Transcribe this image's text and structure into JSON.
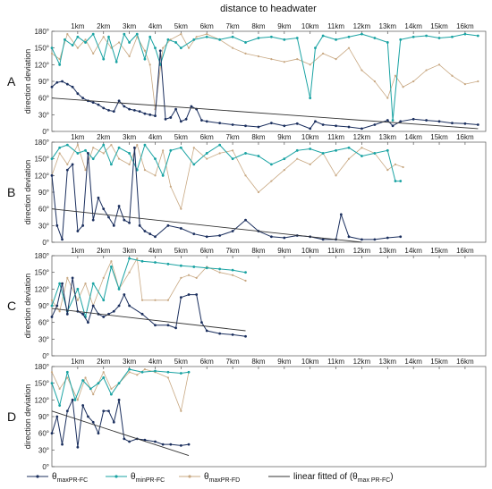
{
  "chart_data": {
    "type": "line",
    "title": "distance to headwater",
    "ylabel": "direction deviation",
    "x_ticks": [
      "1km",
      "2km",
      "3km",
      "4km",
      "5km",
      "6km",
      "7km",
      "8km",
      "9km",
      "10km",
      "11km",
      "12km",
      "13km",
      "14km",
      "15km",
      "16km"
    ],
    "y_ticks": [
      "0°",
      "30°",
      "60°",
      "90°",
      "120°",
      "150°",
      "180°"
    ],
    "xlim": [
      0,
      16.8
    ],
    "ylim": [
      0,
      180
    ],
    "colors": {
      "maxFC": "#1b2f5e",
      "minFC": "#1aa3a3",
      "maxFD": "#c8a882",
      "fit": "#333333"
    },
    "legend": [
      {
        "key": "maxFC",
        "sym": "θ",
        "sub": "maxPR-FC"
      },
      {
        "key": "minFC",
        "sym": "θ",
        "sub": "minPR-FC"
      },
      {
        "key": "maxFD",
        "sym": "θ",
        "sub": "maxPR-FD"
      },
      {
        "key": "fit",
        "sym": "linear fitted of (θ",
        "sub": "max PR-FC",
        "tail": ")"
      }
    ],
    "panels": [
      {
        "label": "A",
        "series": [
          {
            "key": "maxFC",
            "x": [
              0,
              0.2,
              0.4,
              0.6,
              0.8,
              1.0,
              1.2,
              1.4,
              1.6,
              1.8,
              2.0,
              2.2,
              2.4,
              2.6,
              2.8,
              3.0,
              3.2,
              3.4,
              3.6,
              3.8,
              4.0,
              4.2,
              4.4,
              4.6,
              4.8,
              5.0,
              5.2,
              5.4,
              5.6,
              5.8,
              6.0,
              6.5,
              7.0,
              7.5,
              8.0,
              8.5,
              9.0,
              9.5,
              10.0,
              10.2,
              10.5,
              11.0,
              11.5,
              12.0,
              12.5,
              13.0,
              13.2,
              13.5,
              14.0,
              14.5,
              15.0,
              15.5,
              16.0,
              16.5
            ],
            "y": [
              80,
              88,
              90,
              85,
              80,
              68,
              60,
              55,
              52,
              48,
              42,
              38,
              36,
              55,
              45,
              40,
              38,
              36,
              32,
              30,
              28,
              145,
              22,
              25,
              40,
              18,
              22,
              45,
              40,
              20,
              18,
              15,
              12,
              10,
              8,
              15,
              10,
              14,
              5,
              18,
              12,
              10,
              8,
              5,
              12,
              20,
              10,
              18,
              22,
              20,
              18,
              15,
              14,
              12
            ]
          },
          {
            "key": "minFC",
            "x": [
              0,
              0.3,
              0.5,
              0.8,
              1.0,
              1.3,
              1.6,
              2.0,
              2.2,
              2.5,
              2.8,
              3.0,
              3.3,
              3.6,
              3.8,
              4.0,
              4.2,
              4.5,
              4.8,
              5.0,
              5.5,
              6.0,
              6.5,
              7.0,
              7.5,
              8.0,
              8.5,
              9.0,
              9.5,
              10.0,
              10.2,
              10.5,
              11.0,
              11.5,
              12.0,
              12.5,
              13.0,
              13.2,
              13.5,
              14.0,
              14.5,
              15.0,
              15.5,
              16.0,
              16.5
            ],
            "y": [
              150,
              120,
              165,
              155,
              170,
              160,
              175,
              130,
              170,
              125,
              175,
              160,
              175,
              130,
              170,
              150,
              120,
              165,
              160,
              150,
              165,
              170,
              165,
              170,
              160,
              168,
              170,
              165,
              168,
              60,
              150,
              172,
              165,
              170,
              175,
              168,
              160,
              20,
              165,
              170,
              172,
              168,
              170,
              175,
              172
            ]
          },
          {
            "key": "maxFD",
            "x": [
              0,
              0.3,
              0.6,
              1.0,
              1.3,
              1.6,
              2.0,
              2.3,
              2.6,
              3.0,
              3.3,
              3.6,
              3.8,
              4.0,
              4.3,
              4.6,
              5.0,
              5.3,
              5.6,
              6.0,
              6.5,
              7.0,
              7.5,
              8.0,
              8.5,
              9.0,
              9.5,
              10.0,
              10.5,
              11.0,
              11.5,
              12.0,
              12.5,
              13.0,
              13.3,
              13.6,
              14.0,
              14.5,
              15.0,
              15.5,
              16.0,
              16.5
            ],
            "y": [
              140,
              130,
              175,
              150,
              165,
              140,
              170,
              150,
              160,
              135,
              170,
              145,
              120,
              40,
              150,
              165,
              175,
              150,
              170,
              175,
              165,
              150,
              140,
              135,
              130,
              125,
              130,
              120,
              140,
              130,
              150,
              110,
              90,
              60,
              100,
              80,
              90,
              110,
              120,
              100,
              85,
              90
            ]
          }
        ],
        "fit": {
          "x0": 0,
          "y0": 60,
          "x1": 16.5,
          "y1": 5
        }
      },
      {
        "label": "B",
        "series": [
          {
            "key": "maxFC",
            "x": [
              0,
              0.2,
              0.4,
              0.6,
              0.8,
              1.0,
              1.2,
              1.4,
              1.6,
              1.8,
              2.0,
              2.2,
              2.4,
              2.6,
              2.8,
              3.0,
              3.2,
              3.4,
              3.6,
              3.8,
              4.0,
              4.5,
              5.0,
              5.5,
              6.0,
              6.5,
              7.0,
              7.5,
              8.0,
              8.5,
              9.0,
              9.5,
              10.0,
              10.5,
              11.0,
              11.2,
              11.5,
              12.0,
              12.5,
              13.0,
              13.5
            ],
            "y": [
              120,
              30,
              5,
              130,
              140,
              20,
              30,
              160,
              40,
              80,
              60,
              45,
              30,
              65,
              40,
              35,
              170,
              30,
              20,
              15,
              10,
              30,
              25,
              15,
              10,
              12,
              20,
              40,
              20,
              10,
              8,
              12,
              10,
              5,
              5,
              50,
              10,
              5,
              5,
              8,
              10
            ]
          },
          {
            "key": "minFC",
            "x": [
              0,
              0.3,
              0.6,
              1.0,
              1.3,
              1.6,
              2.0,
              2.3,
              2.6,
              3.0,
              3.3,
              3.6,
              4.0,
              4.3,
              4.6,
              5.0,
              5.5,
              6.0,
              6.5,
              7.0,
              7.5,
              8.0,
              8.5,
              9.0,
              9.5,
              10.0,
              10.5,
              11.0,
              11.5,
              12.0,
              12.5,
              13.0,
              13.3,
              13.5
            ],
            "y": [
              150,
              170,
              175,
              160,
              165,
              150,
              175,
              140,
              170,
              160,
              130,
              175,
              150,
              120,
              165,
              170,
              140,
              160,
              175,
              150,
              160,
              155,
              140,
              150,
              165,
              168,
              160,
              165,
              170,
              155,
              160,
              165,
              110,
              110
            ]
          },
          {
            "key": "maxFD",
            "x": [
              0,
              0.3,
              0.6,
              1.0,
              1.3,
              1.6,
              2.0,
              2.3,
              2.6,
              3.0,
              3.3,
              3.6,
              4.0,
              4.3,
              4.6,
              5.0,
              5.5,
              6.0,
              6.5,
              7.0,
              7.5,
              8.0,
              8.5,
              9.0,
              9.5,
              10.0,
              10.5,
              11.0,
              11.5,
              12.0,
              12.5,
              13.0,
              13.3,
              13.6
            ],
            "y": [
              120,
              160,
              140,
              175,
              130,
              170,
              160,
              175,
              150,
              140,
              175,
              130,
              120,
              165,
              100,
              60,
              170,
              150,
              160,
              165,
              120,
              90,
              110,
              130,
              150,
              140,
              160,
              120,
              150,
              170,
              160,
              130,
              140,
              135
            ]
          }
        ],
        "fit": {
          "x0": 0,
          "y0": 60,
          "x1": 12.0,
          "y1": 0
        }
      },
      {
        "label": "C",
        "series": [
          {
            "key": "maxFC",
            "x": [
              0,
              0.2,
              0.4,
              0.6,
              0.8,
              1.0,
              1.2,
              1.4,
              1.6,
              1.8,
              2.0,
              2.2,
              2.4,
              2.6,
              2.8,
              3.0,
              3.5,
              4.0,
              4.5,
              4.8,
              5.0,
              5.3,
              5.6,
              5.8,
              6.0,
              6.5,
              7.0,
              7.5
            ],
            "y": [
              70,
              90,
              130,
              75,
              140,
              80,
              75,
              60,
              90,
              75,
              70,
              75,
              80,
              90,
              110,
              90,
              75,
              55,
              55,
              50,
              105,
              110,
              110,
              60,
              45,
              40,
              38,
              35
            ]
          },
          {
            "key": "minFC",
            "x": [
              0,
              0.3,
              0.6,
              1.0,
              1.3,
              1.6,
              2.0,
              2.3,
              2.6,
              3.0,
              3.5,
              4.0,
              4.5,
              5.0,
              5.5,
              6.0,
              6.5,
              7.0,
              7.5
            ],
            "y": [
              90,
              130,
              80,
              120,
              70,
              130,
              100,
              160,
              120,
              175,
              170,
              168,
              165,
              162,
              160,
              158,
              156,
              154,
              150
            ]
          },
          {
            "key": "maxFD",
            "x": [
              0,
              0.3,
              0.6,
              1.0,
              1.3,
              1.6,
              2.0,
              2.3,
              2.6,
              3.0,
              3.3,
              3.5,
              4.0,
              4.5,
              5.0,
              5.3,
              5.6,
              6.0,
              6.5,
              7.0,
              7.5
            ],
            "y": [
              100,
              80,
              140,
              100,
              130,
              90,
              140,
              170,
              120,
              150,
              175,
              100,
              100,
              100,
              140,
              145,
              140,
              160,
              150,
              145,
              135
            ]
          }
        ],
        "fit": {
          "x0": 0,
          "y0": 85,
          "x1": 7.5,
          "y1": 45
        }
      },
      {
        "label": "D",
        "series": [
          {
            "key": "maxFC",
            "x": [
              0,
              0.2,
              0.4,
              0.6,
              0.8,
              1.0,
              1.2,
              1.4,
              1.6,
              1.8,
              2.0,
              2.2,
              2.4,
              2.6,
              2.8,
              3.0,
              3.3,
              3.6,
              4.0,
              4.3,
              4.6,
              5.0,
              5.3
            ],
            "y": [
              60,
              90,
              40,
              100,
              120,
              35,
              110,
              90,
              80,
              60,
              100,
              100,
              80,
              120,
              50,
              45,
              50,
              48,
              45,
              40,
              40,
              38,
              40
            ]
          },
          {
            "key": "minFC",
            "x": [
              0,
              0.3,
              0.6,
              0.9,
              1.2,
              1.5,
              1.8,
              2.0,
              2.3,
              2.6,
              3.0,
              3.5,
              4.0,
              4.5,
              5.0,
              5.3
            ],
            "y": [
              150,
              110,
              170,
              120,
              155,
              140,
              150,
              160,
              130,
              150,
              175,
              170,
              172,
              170,
              168,
              170
            ]
          },
          {
            "key": "maxFD",
            "x": [
              0,
              0.3,
              0.6,
              1.0,
              1.3,
              1.6,
              2.0,
              2.3,
              2.6,
              3.0,
              3.3,
              3.6,
              4.0,
              4.5,
              5.0,
              5.3
            ],
            "y": [
              170,
              140,
              160,
              120,
              160,
              130,
              170,
              140,
              150,
              170,
              165,
              175,
              170,
              160,
              100,
              170
            ]
          }
        ],
        "fit": {
          "x0": 0,
          "y0": 100,
          "x1": 5.3,
          "y1": 20
        }
      }
    ]
  }
}
